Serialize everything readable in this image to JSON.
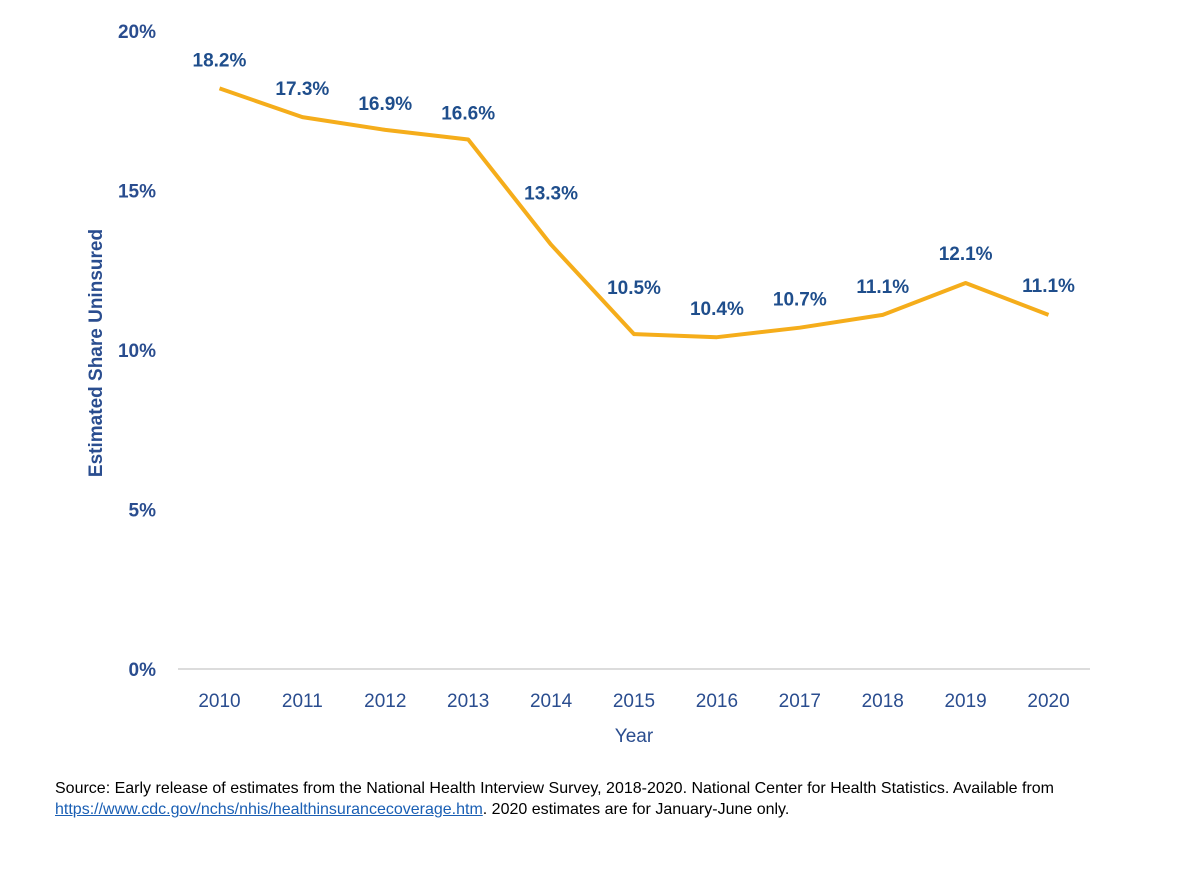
{
  "chart_data": {
    "type": "line",
    "x": [
      "2010",
      "2011",
      "2012",
      "2013",
      "2014",
      "2015",
      "2016",
      "2017",
      "2018",
      "2019",
      "2020"
    ],
    "series": [
      {
        "values": [
          18.2,
          17.3,
          16.9,
          16.6,
          13.3,
          10.5,
          10.4,
          10.7,
          11.1,
          12.1,
          11.1
        ],
        "color": "#f5ad1b"
      }
    ],
    "data_labels": [
      "18.2%",
      "17.3%",
      "16.9%",
      "16.6%",
      "13.3%",
      "10.5%",
      "10.4%",
      "10.7%",
      "11.1%",
      "12.1%",
      "11.1%"
    ],
    "ylim": [
      0,
      20
    ],
    "yticks": [
      0,
      5,
      10,
      15,
      20
    ],
    "ytick_labels": [
      "0%",
      "5%",
      "10%",
      "15%",
      "20%"
    ],
    "xlabel": "Year",
    "ylabel": "Estimated Share Uninsured",
    "grid": false,
    "legend": "none",
    "label_color": "#1f4e8c",
    "axis_color": "#d0d0d0"
  },
  "source": {
    "prefix": "Source: Early release of estimates from the National Health Interview Survey, 2018-2020. National Center for Health Statistics. Available from ",
    "link": "https://www.cdc.gov/nchs/nhis/healthinsurancecoverage.htm",
    "suffix": ". 2020 estimates are for January-June only."
  }
}
